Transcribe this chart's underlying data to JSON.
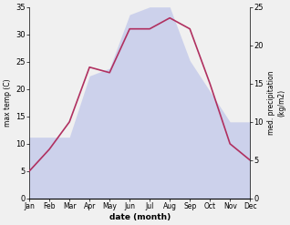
{
  "months": [
    "Jan",
    "Feb",
    "Mar",
    "Apr",
    "May",
    "Jun",
    "Jul",
    "Aug",
    "Sep",
    "Oct",
    "Nov",
    "Dec"
  ],
  "temp": [
    5,
    9,
    14,
    24,
    23,
    31,
    31,
    33,
    31,
    21,
    10,
    7
  ],
  "precip": [
    8,
    8,
    8,
    16,
    17,
    24,
    25,
    25,
    18,
    14,
    10,
    10
  ],
  "temp_ylim": [
    0,
    35
  ],
  "precip_ylim": [
    0,
    25
  ],
  "temp_color": "#b03060",
  "precip_color": "#b0b8e8",
  "precip_fill_alpha": 0.55,
  "ylabel_left": "max temp (C)",
  "ylabel_right": "med. precipitation\n(kg/m2)",
  "xlabel": "date (month)",
  "bg_color": "#f0f0f0",
  "temp_yticks": [
    0,
    5,
    10,
    15,
    20,
    25,
    30,
    35
  ],
  "precip_yticks": [
    0,
    5,
    10,
    15,
    20,
    25
  ]
}
